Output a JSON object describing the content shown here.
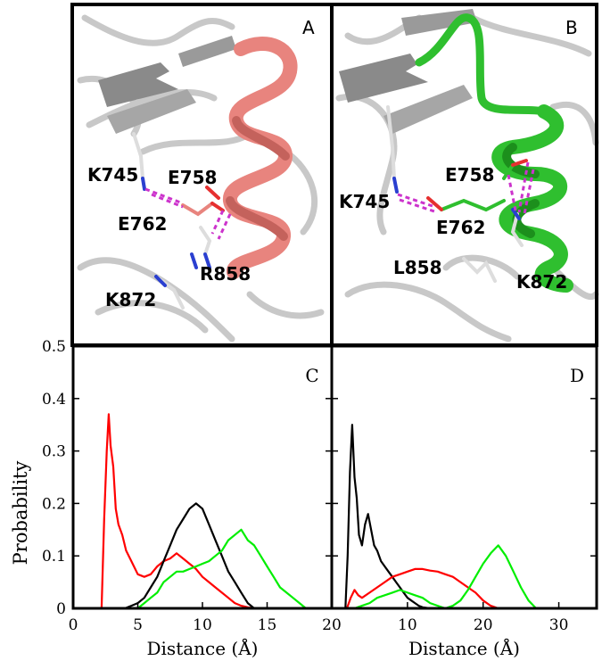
{
  "panels": {
    "A": {
      "letter": "A",
      "helix_color": "#e8847e",
      "labels": [
        "K745",
        "E758",
        "E762",
        "R858",
        "K872"
      ]
    },
    "B": {
      "letter": "B",
      "helix_color": "#2fbf2f",
      "labels": [
        "E758",
        "K745",
        "E762",
        "L858",
        "K872"
      ]
    }
  },
  "hbond_color": "#cc33cc",
  "chart_data": [
    {
      "panel": "C",
      "type": "line",
      "xlabel": "Distance (Å)",
      "ylabel": "Probability",
      "xlim": [
        0,
        20
      ],
      "ylim": [
        0,
        0.5
      ],
      "xticks": [
        0,
        5,
        10,
        15,
        20
      ],
      "yticks": [
        0,
        0.1,
        0.2,
        0.3,
        0.4,
        0.5
      ],
      "series": [
        {
          "color": "#ff0000",
          "x": [
            2.2,
            2.4,
            2.6,
            2.75,
            2.9,
            3.1,
            3.3,
            3.5,
            3.8,
            4.1,
            4.5,
            5.0,
            5.5,
            6.0,
            6.5,
            7.0,
            7.5,
            8.0,
            8.5,
            9.0,
            9.5,
            10.0,
            10.5,
            11.0,
            11.5,
            12.0,
            12.5,
            13.0,
            13.5,
            14.0
          ],
          "y": [
            0.0,
            0.17,
            0.3,
            0.37,
            0.31,
            0.27,
            0.19,
            0.16,
            0.14,
            0.11,
            0.09,
            0.065,
            0.06,
            0.065,
            0.08,
            0.09,
            0.095,
            0.105,
            0.095,
            0.085,
            0.075,
            0.06,
            0.05,
            0.04,
            0.03,
            0.02,
            0.01,
            0.005,
            0.002,
            0.0
          ]
        },
        {
          "color": "#000000",
          "x": [
            4.0,
            4.5,
            5.0,
            5.5,
            6.0,
            6.5,
            7.0,
            7.5,
            8.0,
            8.5,
            9.0,
            9.5,
            10.0,
            10.5,
            11.0,
            11.5,
            12.0,
            12.5,
            13.0,
            13.5,
            14.0
          ],
          "y": [
            0.0,
            0.005,
            0.01,
            0.02,
            0.04,
            0.06,
            0.09,
            0.12,
            0.15,
            0.17,
            0.19,
            0.2,
            0.19,
            0.16,
            0.13,
            0.1,
            0.07,
            0.05,
            0.03,
            0.01,
            0.0
          ]
        },
        {
          "color": "#00ee00",
          "x": [
            5.0,
            5.5,
            6.0,
            6.5,
            7.0,
            7.5,
            8.0,
            8.5,
            9.0,
            9.5,
            10.0,
            10.5,
            11.0,
            11.5,
            12.0,
            12.5,
            13.0,
            13.5,
            14.0,
            14.5,
            15.0,
            15.5,
            16.0,
            16.5,
            17.0,
            17.5,
            18.0
          ],
          "y": [
            0.0,
            0.01,
            0.02,
            0.03,
            0.05,
            0.06,
            0.07,
            0.07,
            0.075,
            0.08,
            0.085,
            0.09,
            0.1,
            0.11,
            0.13,
            0.14,
            0.15,
            0.13,
            0.12,
            0.1,
            0.08,
            0.06,
            0.04,
            0.03,
            0.02,
            0.01,
            0.0
          ]
        }
      ]
    },
    {
      "panel": "D",
      "type": "line",
      "xlabel": "Distance (Å)",
      "ylabel": "",
      "xlim": [
        0,
        35
      ],
      "ylim": [
        0,
        0.5
      ],
      "xticks": [
        10,
        20,
        30
      ],
      "yticks": [
        0,
        0.1,
        0.2,
        0.3,
        0.4,
        0.5
      ],
      "series": [
        {
          "color": "#000000",
          "x": [
            1.8,
            2.1,
            2.4,
            2.7,
            3.0,
            3.3,
            3.6,
            4.0,
            4.4,
            4.8,
            5.2,
            5.6,
            6.0,
            6.5,
            7.0,
            7.5,
            8.0,
            8.5,
            9.0,
            9.5,
            10.0,
            10.5,
            11.0,
            11.5,
            12.0,
            13.0
          ],
          "y": [
            0.0,
            0.1,
            0.26,
            0.35,
            0.25,
            0.21,
            0.14,
            0.12,
            0.16,
            0.18,
            0.15,
            0.12,
            0.11,
            0.09,
            0.08,
            0.07,
            0.06,
            0.05,
            0.04,
            0.03,
            0.02,
            0.015,
            0.01,
            0.005,
            0.002,
            0.0
          ]
        },
        {
          "color": "#ff0000",
          "x": [
            2.0,
            2.5,
            3.0,
            3.5,
            4.0,
            5.0,
            6.0,
            7.0,
            8.0,
            9.0,
            10.0,
            11.0,
            12.0,
            13.0,
            14.0,
            15.0,
            16.0,
            17.0,
            18.0,
            19.0,
            20.0,
            21.0,
            22.0
          ],
          "y": [
            0.0,
            0.02,
            0.035,
            0.025,
            0.02,
            0.03,
            0.04,
            0.05,
            0.06,
            0.065,
            0.07,
            0.075,
            0.075,
            0.072,
            0.07,
            0.065,
            0.06,
            0.05,
            0.04,
            0.03,
            0.015,
            0.005,
            0.0
          ]
        },
        {
          "color": "#00ee00",
          "x": [
            3.0,
            4.0,
            5.0,
            6.0,
            7.0,
            8.0,
            9.0,
            10.0,
            11.0,
            12.0,
            13.0,
            14.0,
            15.0,
            16.0,
            17.0,
            18.0,
            19.0,
            20.0,
            21.0,
            22.0,
            23.0,
            24.0,
            25.0,
            26.0,
            27.0
          ],
          "y": [
            0.0,
            0.005,
            0.01,
            0.02,
            0.025,
            0.03,
            0.035,
            0.03,
            0.025,
            0.02,
            0.01,
            0.005,
            0.0,
            0.005,
            0.015,
            0.035,
            0.06,
            0.085,
            0.105,
            0.12,
            0.1,
            0.07,
            0.04,
            0.015,
            0.0
          ]
        }
      ]
    }
  ]
}
